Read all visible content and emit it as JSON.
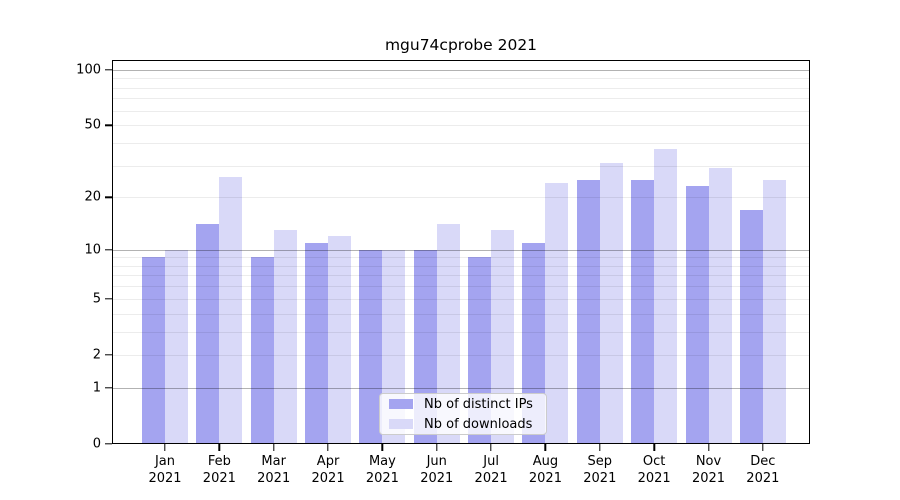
{
  "chart_data": {
    "type": "bar",
    "title": "mgu74cprobe 2021",
    "categories": [
      "Jan",
      "Feb",
      "Mar",
      "Apr",
      "May",
      "Jun",
      "Jul",
      "Aug",
      "Sep",
      "Oct",
      "Nov",
      "Dec"
    ],
    "x_year_label": "2021",
    "series": [
      {
        "name": "Nb of distinct IPs",
        "color": "#a4a4f0",
        "values": [
          9,
          14,
          9,
          11,
          10,
          10,
          9,
          11,
          25,
          25,
          23,
          17
        ]
      },
      {
        "name": "Nb of downloads",
        "color": "#d9d9f8",
        "values": [
          10,
          26,
          13,
          12,
          10,
          14,
          13,
          24,
          31,
          37,
          29,
          25
        ]
      }
    ],
    "xlabel": "",
    "ylabel": "",
    "y_scale": "log1p",
    "ylim": [
      0,
      113
    ],
    "y_ticks": [
      0,
      1,
      2,
      5,
      10,
      20,
      50,
      100
    ],
    "y_major_gridlines": [
      1,
      10,
      100
    ],
    "y_minor_gridlines": [
      2,
      3,
      4,
      5,
      6,
      7,
      8,
      9,
      20,
      30,
      40,
      50,
      60,
      70,
      80,
      90
    ],
    "grid": true,
    "legend_position": "lower center"
  },
  "colors": {
    "background": "#ffffff",
    "spine": "#000000",
    "major_grid": "#b0b0b0",
    "minor_grid": "#e8e8e8",
    "legend_border": "#cccccc"
  }
}
